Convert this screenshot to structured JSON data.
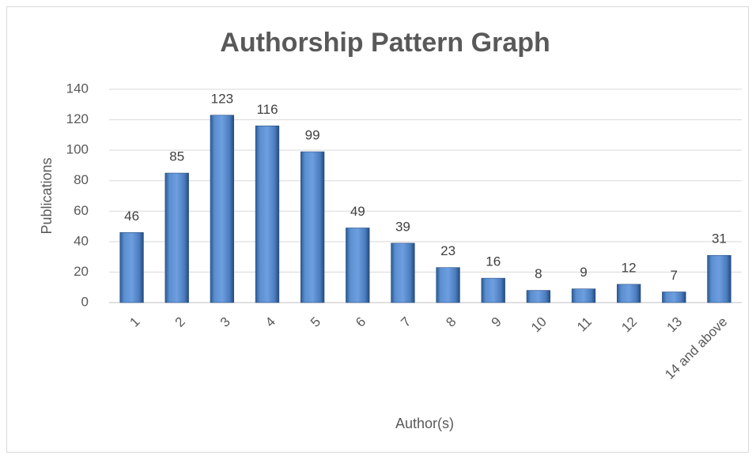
{
  "chart_data": {
    "type": "bar",
    "title": "Authorship Pattern Graph",
    "x_label": "Author(s)",
    "y_label": "Publications",
    "categories": [
      "1",
      "2",
      "3",
      "4",
      "5",
      "6",
      "7",
      "8",
      "9",
      "10",
      "11",
      "12",
      "13",
      "14 and above"
    ],
    "values": [
      46,
      85,
      123,
      116,
      99,
      49,
      39,
      23,
      16,
      8,
      9,
      12,
      7,
      31
    ],
    "color": "#4f81bd",
    "ylim": [
      0,
      140
    ],
    "yticks": [
      0,
      20,
      40,
      60,
      80,
      100,
      120,
      140
    ],
    "grid": true,
    "data_labels": true
  }
}
